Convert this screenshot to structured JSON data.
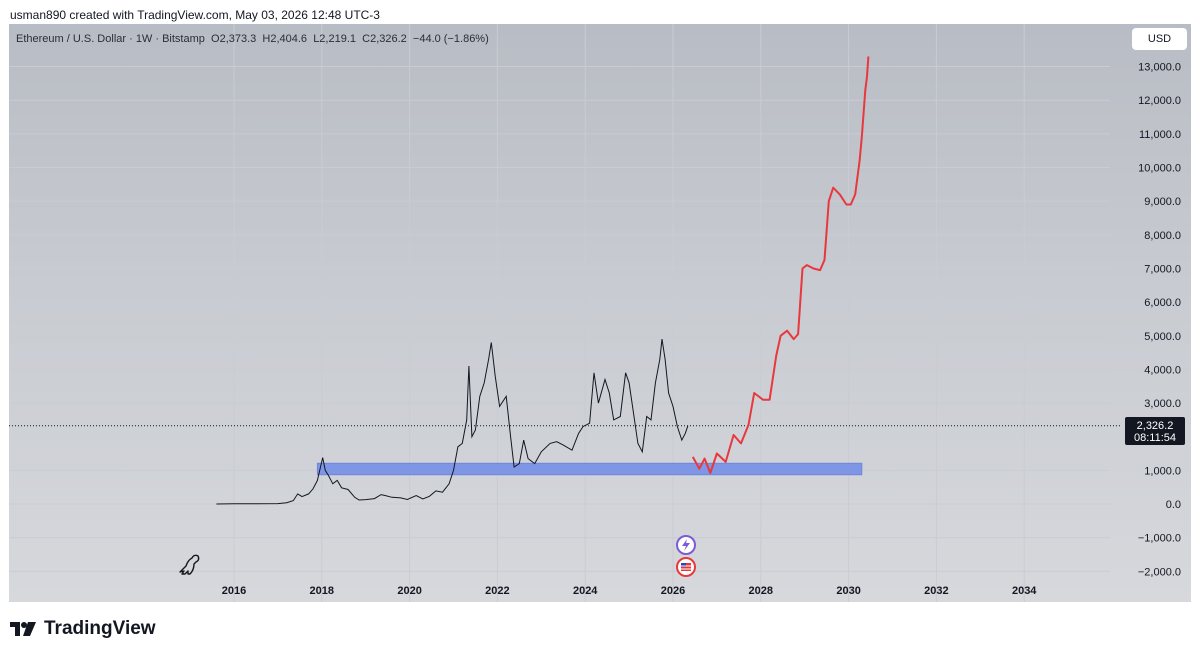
{
  "header": {
    "credit": "usman890 created with TradingView.com, May 03, 2026 12:48 UTC-3"
  },
  "legend": {
    "symbol": "Ethereum / U.S. Dollar · 1W · Bitstamp",
    "open": "O2,373.3",
    "high": "H2,404.6",
    "low": "L2,219.1",
    "close": "C2,326.2",
    "change": "−44.0 (−1.86%)"
  },
  "currency": "USD",
  "price_tag": {
    "price": "2,326.2",
    "countdown": "08:11:54"
  },
  "brand": {
    "name": "TradingView"
  },
  "colors": {
    "price_line": "#131722",
    "projection": "#e8383d",
    "support_zone": "#7f96e6"
  },
  "chart_data": {
    "type": "line",
    "ylim": [
      -2000,
      13000
    ],
    "xlim": [
      2015.0,
      2034.9
    ],
    "y_ticks": [
      "13,000.0",
      "12,000.0",
      "11,000.0",
      "10,000.0",
      "9,000.0",
      "8,000.0",
      "7,000.0",
      "6,000.0",
      "5,000.0",
      "4,000.0",
      "3,000.0",
      "1,000.0",
      "0.0",
      "−1,000.0",
      "−2,000.0"
    ],
    "y_tick_values": [
      13000,
      12000,
      11000,
      10000,
      9000,
      8000,
      7000,
      6000,
      5000,
      4000,
      3000,
      1000,
      0,
      -1000,
      -2000
    ],
    "x_ticks": [
      "2016",
      "2018",
      "2020",
      "2022",
      "2024",
      "2026",
      "2028",
      "2030",
      "2032",
      "2034"
    ],
    "x_tick_values": [
      2016,
      2018,
      2020,
      2022,
      2024,
      2026,
      2028,
      2030,
      2032,
      2034
    ],
    "current_price": 2326.2,
    "series": [
      {
        "type": "line",
        "values": [
          [
            2015.6,
            0
          ],
          [
            2016.0,
            5
          ],
          [
            2016.5,
            10
          ],
          [
            2017.0,
            12
          ],
          [
            2017.2,
            40
          ],
          [
            2017.35,
            100
          ],
          [
            2017.45,
            300
          ],
          [
            2017.55,
            220
          ],
          [
            2017.7,
            300
          ],
          [
            2017.8,
            450
          ],
          [
            2017.9,
            700
          ],
          [
            2017.97,
            1100
          ],
          [
            2018.02,
            1380
          ],
          [
            2018.08,
            1000
          ],
          [
            2018.15,
            850
          ],
          [
            2018.25,
            600
          ],
          [
            2018.35,
            700
          ],
          [
            2018.45,
            480
          ],
          [
            2018.6,
            430
          ],
          [
            2018.75,
            200
          ],
          [
            2018.85,
            120
          ],
          [
            2019.0,
            130
          ],
          [
            2019.2,
            160
          ],
          [
            2019.35,
            280
          ],
          [
            2019.45,
            250
          ],
          [
            2019.6,
            200
          ],
          [
            2019.8,
            180
          ],
          [
            2019.95,
            135
          ],
          [
            2020.15,
            250
          ],
          [
            2020.3,
            150
          ],
          [
            2020.45,
            230
          ],
          [
            2020.6,
            390
          ],
          [
            2020.75,
            350
          ],
          [
            2020.9,
            600
          ],
          [
            2021.0,
            1000
          ],
          [
            2021.1,
            1700
          ],
          [
            2021.2,
            1800
          ],
          [
            2021.3,
            2500
          ],
          [
            2021.35,
            4100
          ],
          [
            2021.42,
            2000
          ],
          [
            2021.5,
            2200
          ],
          [
            2021.6,
            3200
          ],
          [
            2021.7,
            3600
          ],
          [
            2021.8,
            4300
          ],
          [
            2021.86,
            4800
          ],
          [
            2021.95,
            3800
          ],
          [
            2022.05,
            2900
          ],
          [
            2022.2,
            3200
          ],
          [
            2022.3,
            2000
          ],
          [
            2022.38,
            1100
          ],
          [
            2022.5,
            1200
          ],
          [
            2022.6,
            1900
          ],
          [
            2022.7,
            1350
          ],
          [
            2022.85,
            1200
          ],
          [
            2023.0,
            1550
          ],
          [
            2023.2,
            1800
          ],
          [
            2023.35,
            1850
          ],
          [
            2023.5,
            1750
          ],
          [
            2023.7,
            1600
          ],
          [
            2023.85,
            2100
          ],
          [
            2023.95,
            2300
          ],
          [
            2024.1,
            2400
          ],
          [
            2024.2,
            3900
          ],
          [
            2024.3,
            3000
          ],
          [
            2024.45,
            3700
          ],
          [
            2024.55,
            3300
          ],
          [
            2024.65,
            2500
          ],
          [
            2024.8,
            2600
          ],
          [
            2024.92,
            3900
          ],
          [
            2025.0,
            3600
          ],
          [
            2025.1,
            2700
          ],
          [
            2025.2,
            1800
          ],
          [
            2025.3,
            1550
          ],
          [
            2025.4,
            2600
          ],
          [
            2025.5,
            2500
          ],
          [
            2025.6,
            3600
          ],
          [
            2025.7,
            4300
          ],
          [
            2025.75,
            4900
          ],
          [
            2025.82,
            4300
          ],
          [
            2025.9,
            3300
          ],
          [
            2026.0,
            2900
          ],
          [
            2026.1,
            2300
          ],
          [
            2026.2,
            1900
          ],
          [
            2026.28,
            2100
          ],
          [
            2026.34,
            2326.2
          ]
        ]
      },
      {
        "type": "projection",
        "values": [
          [
            2026.45,
            1400
          ],
          [
            2026.6,
            1050
          ],
          [
            2026.72,
            1350
          ],
          [
            2026.85,
            920
          ],
          [
            2027.0,
            1500
          ],
          [
            2027.2,
            1250
          ],
          [
            2027.38,
            2050
          ],
          [
            2027.55,
            1800
          ],
          [
            2027.72,
            2350
          ],
          [
            2027.85,
            3300
          ],
          [
            2028.05,
            3100
          ],
          [
            2028.2,
            3100
          ],
          [
            2028.35,
            4400
          ],
          [
            2028.45,
            5000
          ],
          [
            2028.6,
            5150
          ],
          [
            2028.75,
            4900
          ],
          [
            2028.85,
            5050
          ],
          [
            2028.95,
            7000
          ],
          [
            2029.05,
            7100
          ],
          [
            2029.2,
            7000
          ],
          [
            2029.35,
            6950
          ],
          [
            2029.45,
            7250
          ],
          [
            2029.55,
            9000
          ],
          [
            2029.65,
            9400
          ],
          [
            2029.8,
            9200
          ],
          [
            2029.95,
            8900
          ],
          [
            2030.05,
            8900
          ],
          [
            2030.15,
            9200
          ],
          [
            2030.25,
            10200
          ],
          [
            2030.3,
            10900
          ],
          [
            2030.38,
            12300
          ],
          [
            2030.42,
            12700
          ],
          [
            2030.45,
            13300
          ]
        ]
      }
    ],
    "support_zone": {
      "x0": 2017.9,
      "x1": 2030.3,
      "y0": 870,
      "y1": 1210
    }
  }
}
